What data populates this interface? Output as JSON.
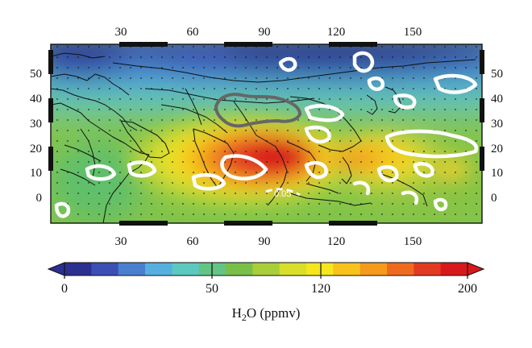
{
  "map": {
    "x_ticks_top": [
      "30",
      "60",
      "90",
      "120",
      "150"
    ],
    "x_ticks_bottom": [
      "30",
      "60",
      "90",
      "120",
      "150"
    ],
    "y_ticks_right": [
      "50",
      "40",
      "30",
      "20",
      "10",
      "0"
    ],
    "contour_label": "0.05"
  },
  "colorbar": {
    "tick_labels": [
      "0",
      "50",
      "120",
      "200"
    ],
    "title_main": "H",
    "title_sub": "2",
    "title_rest": "O (ppmv)",
    "colors": [
      "#2b2f8f",
      "#3b4fb5",
      "#4a7fcf",
      "#55b0e0",
      "#5cc9c0",
      "#63c486",
      "#79c04a",
      "#a8cf3a",
      "#d8df2a",
      "#f5e61e",
      "#f8c21c",
      "#f59a1b",
      "#ef6a1f",
      "#e23a22",
      "#d7191c"
    ]
  }
}
